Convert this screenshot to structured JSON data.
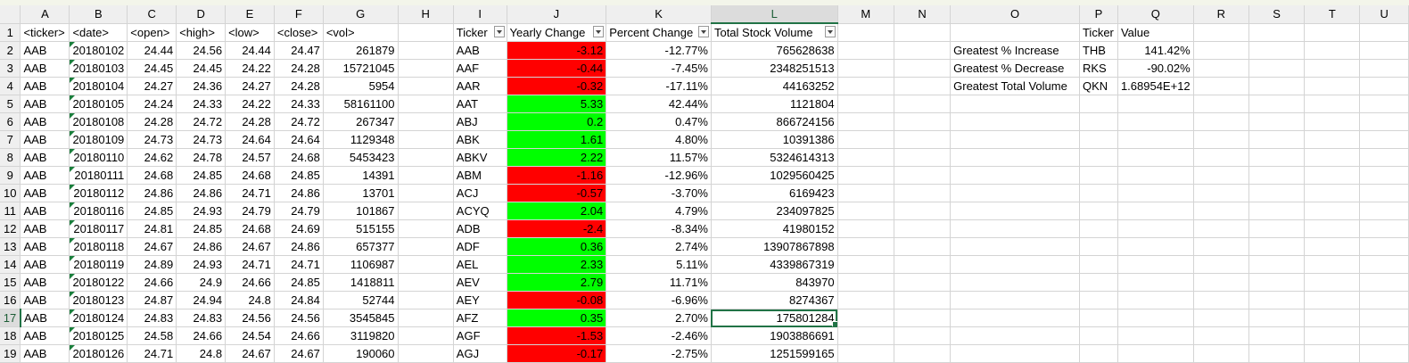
{
  "sheet": {
    "columns": [
      "A",
      "B",
      "C",
      "D",
      "E",
      "F",
      "G",
      "H",
      "I",
      "J",
      "K",
      "L",
      "M",
      "N",
      "O",
      "P",
      "Q",
      "R",
      "S",
      "T",
      "U"
    ],
    "active_column": "L",
    "active_row": 17,
    "colors": {
      "red": "#ff0000",
      "green": "#00ff00",
      "accent": "#217346"
    },
    "header_row": {
      "A": "<ticker>",
      "B": "<date>",
      "C": "<open>",
      "D": "<high>",
      "E": "<low>",
      "F": "<close>",
      "G": "<vol>",
      "I": "Ticker",
      "J": "Yearly Change",
      "K": "Percent Change",
      "L": "Total Stock Volume",
      "P": "Ticker",
      "Q": "Value"
    },
    "raw_rows": [
      [
        "AAB",
        "20180102",
        "24.44",
        "24.56",
        "24.44",
        "24.47",
        "261879"
      ],
      [
        "AAB",
        "20180103",
        "24.45",
        "24.45",
        "24.22",
        "24.28",
        "15721045"
      ],
      [
        "AAB",
        "20180104",
        "24.27",
        "24.36",
        "24.27",
        "24.28",
        "5954"
      ],
      [
        "AAB",
        "20180105",
        "24.24",
        "24.33",
        "24.22",
        "24.33",
        "58161100"
      ],
      [
        "AAB",
        "20180108",
        "24.28",
        "24.72",
        "24.28",
        "24.72",
        "267347"
      ],
      [
        "AAB",
        "20180109",
        "24.73",
        "24.73",
        "24.64",
        "24.64",
        "1129348"
      ],
      [
        "AAB",
        "20180110",
        "24.62",
        "24.78",
        "24.57",
        "24.68",
        "5453423"
      ],
      [
        "AAB",
        "20180111",
        "24.68",
        "24.85",
        "24.68",
        "24.85",
        "14391"
      ],
      [
        "AAB",
        "20180112",
        "24.86",
        "24.86",
        "24.71",
        "24.86",
        "13701"
      ],
      [
        "AAB",
        "20180116",
        "24.85",
        "24.93",
        "24.79",
        "24.79",
        "101867"
      ],
      [
        "AAB",
        "20180117",
        "24.81",
        "24.85",
        "24.68",
        "24.69",
        "515155"
      ],
      [
        "AAB",
        "20180118",
        "24.67",
        "24.86",
        "24.67",
        "24.86",
        "657377"
      ],
      [
        "AAB",
        "20180119",
        "24.89",
        "24.93",
        "24.71",
        "24.71",
        "1106987"
      ],
      [
        "AAB",
        "20180122",
        "24.66",
        "24.9",
        "24.66",
        "24.85",
        "1418811"
      ],
      [
        "AAB",
        "20180123",
        "24.87",
        "24.94",
        "24.8",
        "24.84",
        "52744"
      ],
      [
        "AAB",
        "20180124",
        "24.83",
        "24.83",
        "24.56",
        "24.56",
        "3545845"
      ],
      [
        "AAB",
        "20180125",
        "24.58",
        "24.66",
        "24.54",
        "24.66",
        "3119820"
      ],
      [
        "AAB",
        "20180126",
        "24.71",
        "24.8",
        "24.67",
        "24.67",
        "190060"
      ]
    ],
    "summary_rows": [
      [
        "AAB",
        "-3.12",
        "-12.77%",
        "765628638",
        "red"
      ],
      [
        "AAF",
        "-0.44",
        "-7.45%",
        "2348251513",
        "red"
      ],
      [
        "AAR",
        "-0.32",
        "-17.11%",
        "44163252",
        "red"
      ],
      [
        "AAT",
        "5.33",
        "42.44%",
        "1121804",
        "green"
      ],
      [
        "ABJ",
        "0.2",
        "0.47%",
        "866724156",
        "green"
      ],
      [
        "ABK",
        "1.61",
        "4.80%",
        "10391386",
        "green"
      ],
      [
        "ABKV",
        "2.22",
        "11.57%",
        "5324614313",
        "green"
      ],
      [
        "ABM",
        "-1.16",
        "-12.96%",
        "1029560425",
        "red"
      ],
      [
        "ACJ",
        "-0.57",
        "-3.70%",
        "6169423",
        "red"
      ],
      [
        "ACYQ",
        "2.04",
        "4.79%",
        "234097825",
        "green"
      ],
      [
        "ADB",
        "-2.4",
        "-8.34%",
        "41980152",
        "red"
      ],
      [
        "ADF",
        "0.36",
        "2.74%",
        "13907867898",
        "green"
      ],
      [
        "AEL",
        "2.33",
        "5.11%",
        "4339867319",
        "green"
      ],
      [
        "AEV",
        "2.79",
        "11.71%",
        "843970",
        "green"
      ],
      [
        "AEY",
        "-0.08",
        "-6.96%",
        "8274367",
        "red"
      ],
      [
        "AFZ",
        "0.35",
        "2.70%",
        "175801284",
        "green"
      ],
      [
        "AGF",
        "-1.53",
        "-2.46%",
        "1903886691",
        "red"
      ],
      [
        "AGJ",
        "-0.17",
        "-2.75%",
        "1251599165",
        "red"
      ]
    ],
    "greatest": [
      [
        "Greatest % Increase",
        "THB",
        "141.42%"
      ],
      [
        "Greatest % Decrease",
        "RKS",
        "-90.02%"
      ],
      [
        "Greatest Total Volume",
        "QKN",
        "1.68954E+12"
      ]
    ]
  }
}
